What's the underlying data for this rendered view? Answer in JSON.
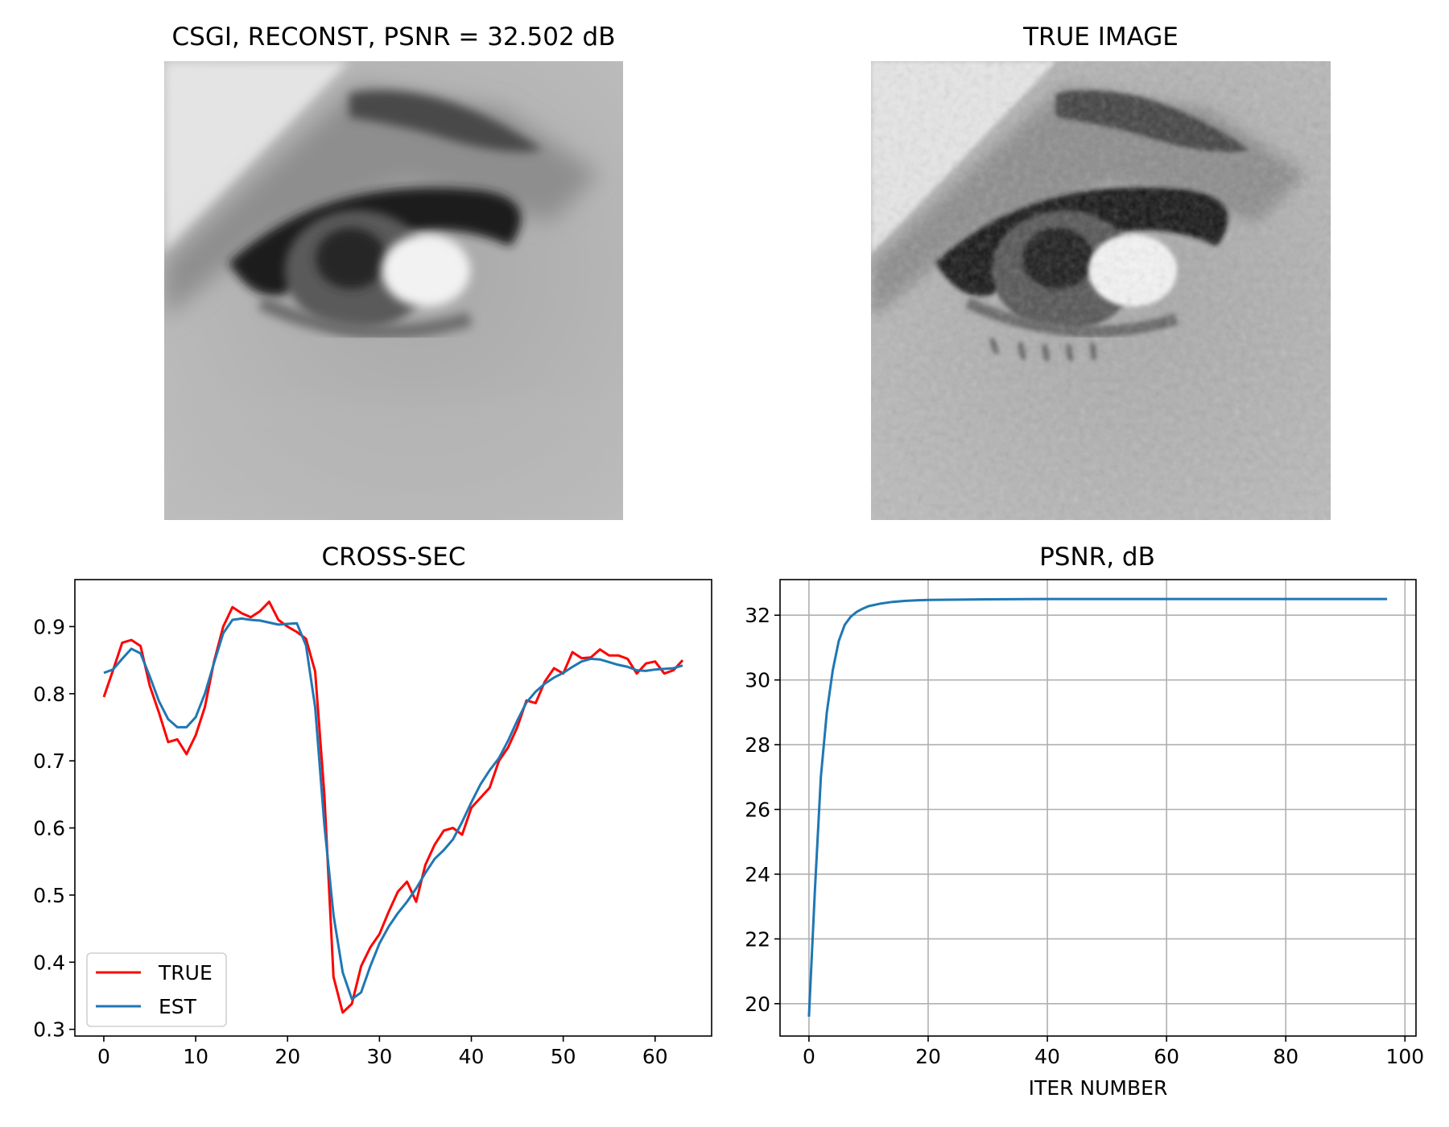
{
  "panels": {
    "recon_title": "CSGI, RECONST, PSNR = 32.502 dB",
    "true_title": "TRUE IMAGE",
    "cross_title": "CROSS-SEC",
    "psnr_title": "PSNR, dB"
  },
  "colors": {
    "true_line": "#ff0000",
    "est_line": "#1f77b4",
    "grid": "#b0b0b0"
  },
  "chart_data": [
    {
      "type": "line",
      "title": "CROSS-SEC",
      "xlabel": "",
      "ylabel": "",
      "xlim": [
        -3.15,
        66.15
      ],
      "ylim": [
        0.29,
        0.97
      ],
      "xticks": [
        0,
        10,
        20,
        30,
        40,
        50,
        60
      ],
      "yticks": [
        0.3,
        0.4,
        0.5,
        0.6,
        0.7,
        0.8,
        0.9
      ],
      "grid": false,
      "legend": "lower-left",
      "series": [
        {
          "name": "TRUE",
          "color": "#ff0000",
          "values": [
            0.795,
            0.835,
            0.876,
            0.88,
            0.871,
            0.812,
            0.772,
            0.728,
            0.732,
            0.71,
            0.738,
            0.78,
            0.848,
            0.9,
            0.929,
            0.92,
            0.914,
            0.923,
            0.937,
            0.91,
            0.9,
            0.892,
            0.882,
            0.833,
            0.65,
            0.378,
            0.325,
            0.338,
            0.394,
            0.422,
            0.442,
            0.475,
            0.505,
            0.52,
            0.49,
            0.545,
            0.575,
            0.596,
            0.6,
            0.59,
            0.63,
            0.645,
            0.66,
            0.7,
            0.72,
            0.75,
            0.79,
            0.786,
            0.818,
            0.838,
            0.83,
            0.862,
            0.853,
            0.854,
            0.866,
            0.857,
            0.857,
            0.852,
            0.83,
            0.845,
            0.848,
            0.83,
            0.835,
            0.85
          ]
        },
        {
          "name": "EST",
          "color": "#1f77b4",
          "values": [
            0.831,
            0.836,
            0.852,
            0.867,
            0.86,
            0.826,
            0.789,
            0.762,
            0.75,
            0.75,
            0.765,
            0.8,
            0.846,
            0.89,
            0.91,
            0.912,
            0.91,
            0.909,
            0.906,
            0.903,
            0.904,
            0.905,
            0.872,
            0.78,
            0.605,
            0.47,
            0.385,
            0.345,
            0.355,
            0.394,
            0.428,
            0.453,
            0.473,
            0.49,
            0.51,
            0.533,
            0.554,
            0.567,
            0.583,
            0.609,
            0.638,
            0.665,
            0.686,
            0.704,
            0.73,
            0.76,
            0.787,
            0.803,
            0.815,
            0.824,
            0.831,
            0.84,
            0.848,
            0.852,
            0.851,
            0.847,
            0.843,
            0.84,
            0.835,
            0.834,
            0.836,
            0.837,
            0.838,
            0.842
          ]
        }
      ]
    },
    {
      "type": "line",
      "title": "PSNR, dB",
      "xlabel": "ITER NUMBER",
      "ylabel": "",
      "xlim": [
        -4.85,
        101.85
      ],
      "ylim": [
        19.0,
        33.1
      ],
      "xticks": [
        0,
        20,
        40,
        60,
        80,
        100
      ],
      "yticks": [
        20,
        22,
        24,
        26,
        28,
        30,
        32
      ],
      "grid": true,
      "series": [
        {
          "color": "#1f77b4",
          "x": [
            0,
            1,
            2,
            3,
            4,
            5,
            6,
            7,
            8,
            9,
            10,
            12,
            14,
            16,
            18,
            20,
            25,
            30,
            40,
            50,
            60,
            70,
            80,
            90,
            97
          ],
          "values": [
            19.6,
            23.5,
            27.0,
            29.0,
            30.3,
            31.2,
            31.7,
            31.95,
            32.1,
            32.2,
            32.28,
            32.36,
            32.41,
            32.44,
            32.46,
            32.47,
            32.48,
            32.49,
            32.5,
            32.5,
            32.5,
            32.5,
            32.5,
            32.5,
            32.5
          ]
        }
      ]
    }
  ]
}
